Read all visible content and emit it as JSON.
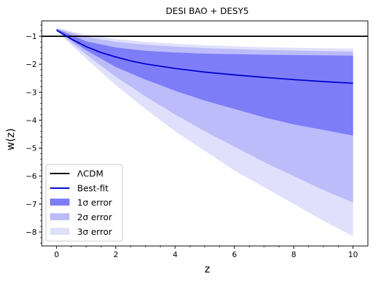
{
  "chart_data": {
    "type": "area",
    "title": "DESI BAO + DESY5",
    "xlabel": "z",
    "ylabel": "w(z)",
    "xlim": [
      -0.5,
      10.5
    ],
    "ylim": [
      -8.5,
      -0.45
    ],
    "xticks": [
      0,
      2,
      4,
      6,
      8,
      10
    ],
    "yticks": [
      -1,
      -2,
      -3,
      -4,
      -5,
      -6,
      -7,
      -8
    ],
    "legend_position": "lower-left",
    "reference_line": {
      "name": "ΛCDM",
      "y": -1,
      "color": "#000000"
    },
    "best_fit": {
      "name": "Best-fit",
      "color": "#0000cc",
      "x": [
        0,
        0.5,
        1,
        1.5,
        2,
        2.5,
        3,
        4,
        5,
        6,
        7,
        8,
        9,
        10
      ],
      "y": [
        -0.78,
        -1.1,
        -1.37,
        -1.58,
        -1.74,
        -1.88,
        -1.99,
        -2.15,
        -2.28,
        -2.38,
        -2.47,
        -2.55,
        -2.62,
        -2.68
      ]
    },
    "bands": [
      {
        "name": "3σ error",
        "color": "#e0e0fc",
        "x": [
          0,
          1,
          2,
          3,
          4,
          5,
          6,
          7,
          8,
          9,
          10
        ],
        "upper": [
          -0.7,
          -0.95,
          -1.1,
          -1.2,
          -1.27,
          -1.32,
          -1.36,
          -1.39,
          -1.41,
          -1.43,
          -1.44
        ],
        "lower": [
          -0.82,
          -1.8,
          -2.75,
          -3.6,
          -4.4,
          -5.1,
          -5.8,
          -6.4,
          -7.0,
          -7.6,
          -8.15
        ]
      },
      {
        "name": "2σ error",
        "color": "#bcbcfb",
        "x": [
          0,
          1,
          2,
          3,
          4,
          5,
          6,
          7,
          8,
          9,
          10
        ],
        "upper": [
          -0.72,
          -1.02,
          -1.2,
          -1.3,
          -1.37,
          -1.42,
          -1.46,
          -1.49,
          -1.51,
          -1.53,
          -1.55
        ],
        "lower": [
          -0.8,
          -1.65,
          -2.45,
          -3.15,
          -3.8,
          -4.4,
          -4.95,
          -5.5,
          -6.0,
          -6.5,
          -6.95
        ]
      },
      {
        "name": "1σ error",
        "color": "#7d7df8",
        "x": [
          0,
          1,
          2,
          3,
          4,
          5,
          6,
          7,
          8,
          9,
          10
        ],
        "upper": [
          -0.74,
          -1.18,
          -1.4,
          -1.52,
          -1.58,
          -1.62,
          -1.64,
          -1.66,
          -1.67,
          -1.68,
          -1.69
        ],
        "lower": [
          -0.78,
          -1.5,
          -2.1,
          -2.55,
          -2.95,
          -3.3,
          -3.6,
          -3.9,
          -4.15,
          -4.35,
          -4.55
        ]
      }
    ],
    "legend_entries": [
      "ΛCDM",
      "Best-fit",
      "1σ error",
      "2σ error",
      "3σ error"
    ]
  }
}
